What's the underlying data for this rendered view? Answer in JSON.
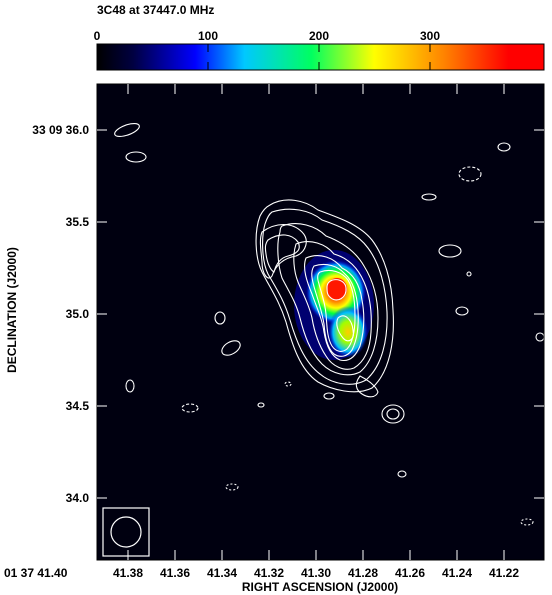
{
  "chart_data": {
    "type": "heatmap",
    "title": "3C48 at 37447.0 MHz",
    "xlabel": "RIGHT ASCENSION (J2000)",
    "ylabel": "DECLINATION (J2000)",
    "colorbar": {
      "ticks": [
        "0",
        "100",
        "200",
        "300"
      ],
      "range": [
        0,
        390
      ],
      "colormap": [
        "#000000",
        "#0000ff",
        "#00c8ff",
        "#00ff60",
        "#ffff00",
        "#ff8000",
        "#ff0000"
      ]
    },
    "x_ticks": [
      "01 37 41.40",
      "41.38",
      "41.36",
      "41.34",
      "41.32",
      "41.30",
      "41.28",
      "41.26",
      "41.24",
      "41.22"
    ],
    "y_ticks": [
      "33 09 36.0",
      "35.5",
      "35.0",
      "34.5",
      "34.0"
    ],
    "background": "#000010",
    "contour_color": "#ffffff",
    "source": {
      "peak_ra": "41.296",
      "peak_dec": "35.13",
      "peak_value": 390,
      "secondary_knot_dec": "34.90"
    },
    "beam": "circular"
  }
}
